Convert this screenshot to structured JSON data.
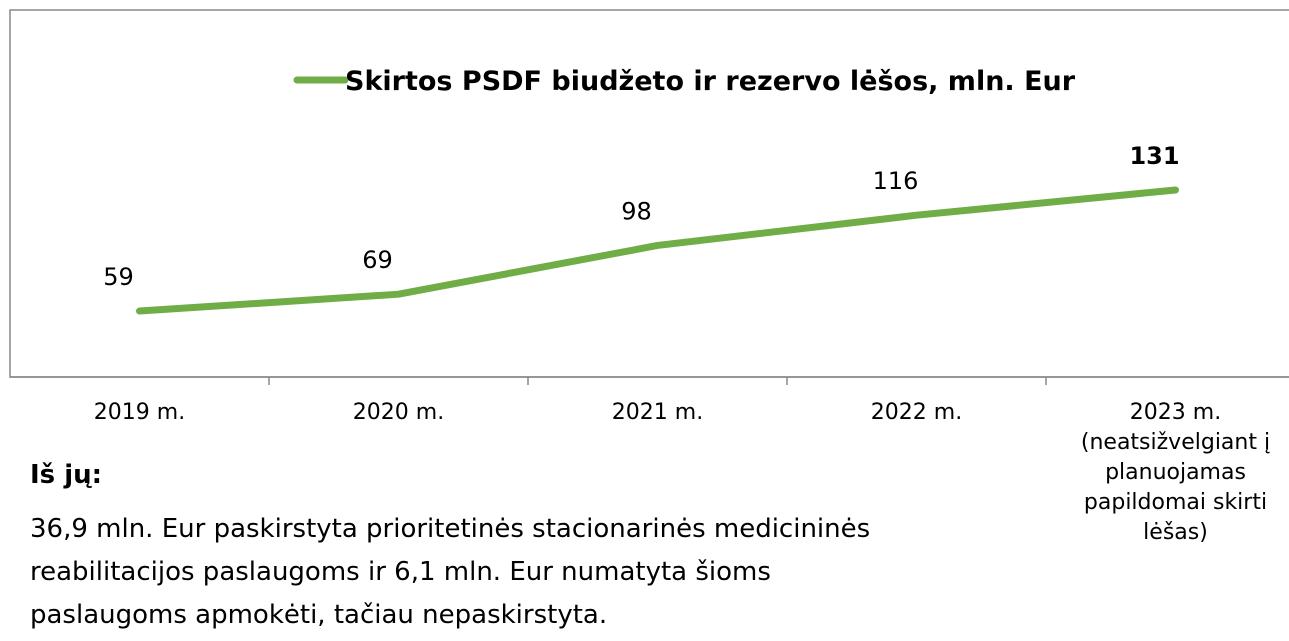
{
  "chart_data": {
    "type": "line",
    "title": "Skirtos PSDF biudžeto ir rezervo lėšos, mln. Eur",
    "categories": [
      "2019 m.",
      "2020 m.",
      "2021 m.",
      "2022 m.",
      "2023 m.\n(neatsižvelgiant į\nplanuojamas\npapildomai skirti\nlėšas)"
    ],
    "series": [
      {
        "name": "Skirtos PSDF biudžeto ir rezervo lėšos, mln. Eur",
        "color": "#70ad47",
        "values": [
          59,
          69,
          98,
          116,
          131
        ]
      }
    ],
    "legend": "top"
  },
  "note": {
    "heading": "Iš jų:",
    "text": "36,9 mln. Eur paskirstyta prioritetinės stacionarinės medicininės\nreabilitacijos paslaugoms ir 6,1 mln. Eur numatyta šioms\npaslaugoms apmokėti, tačiau nepaskirstyta."
  }
}
